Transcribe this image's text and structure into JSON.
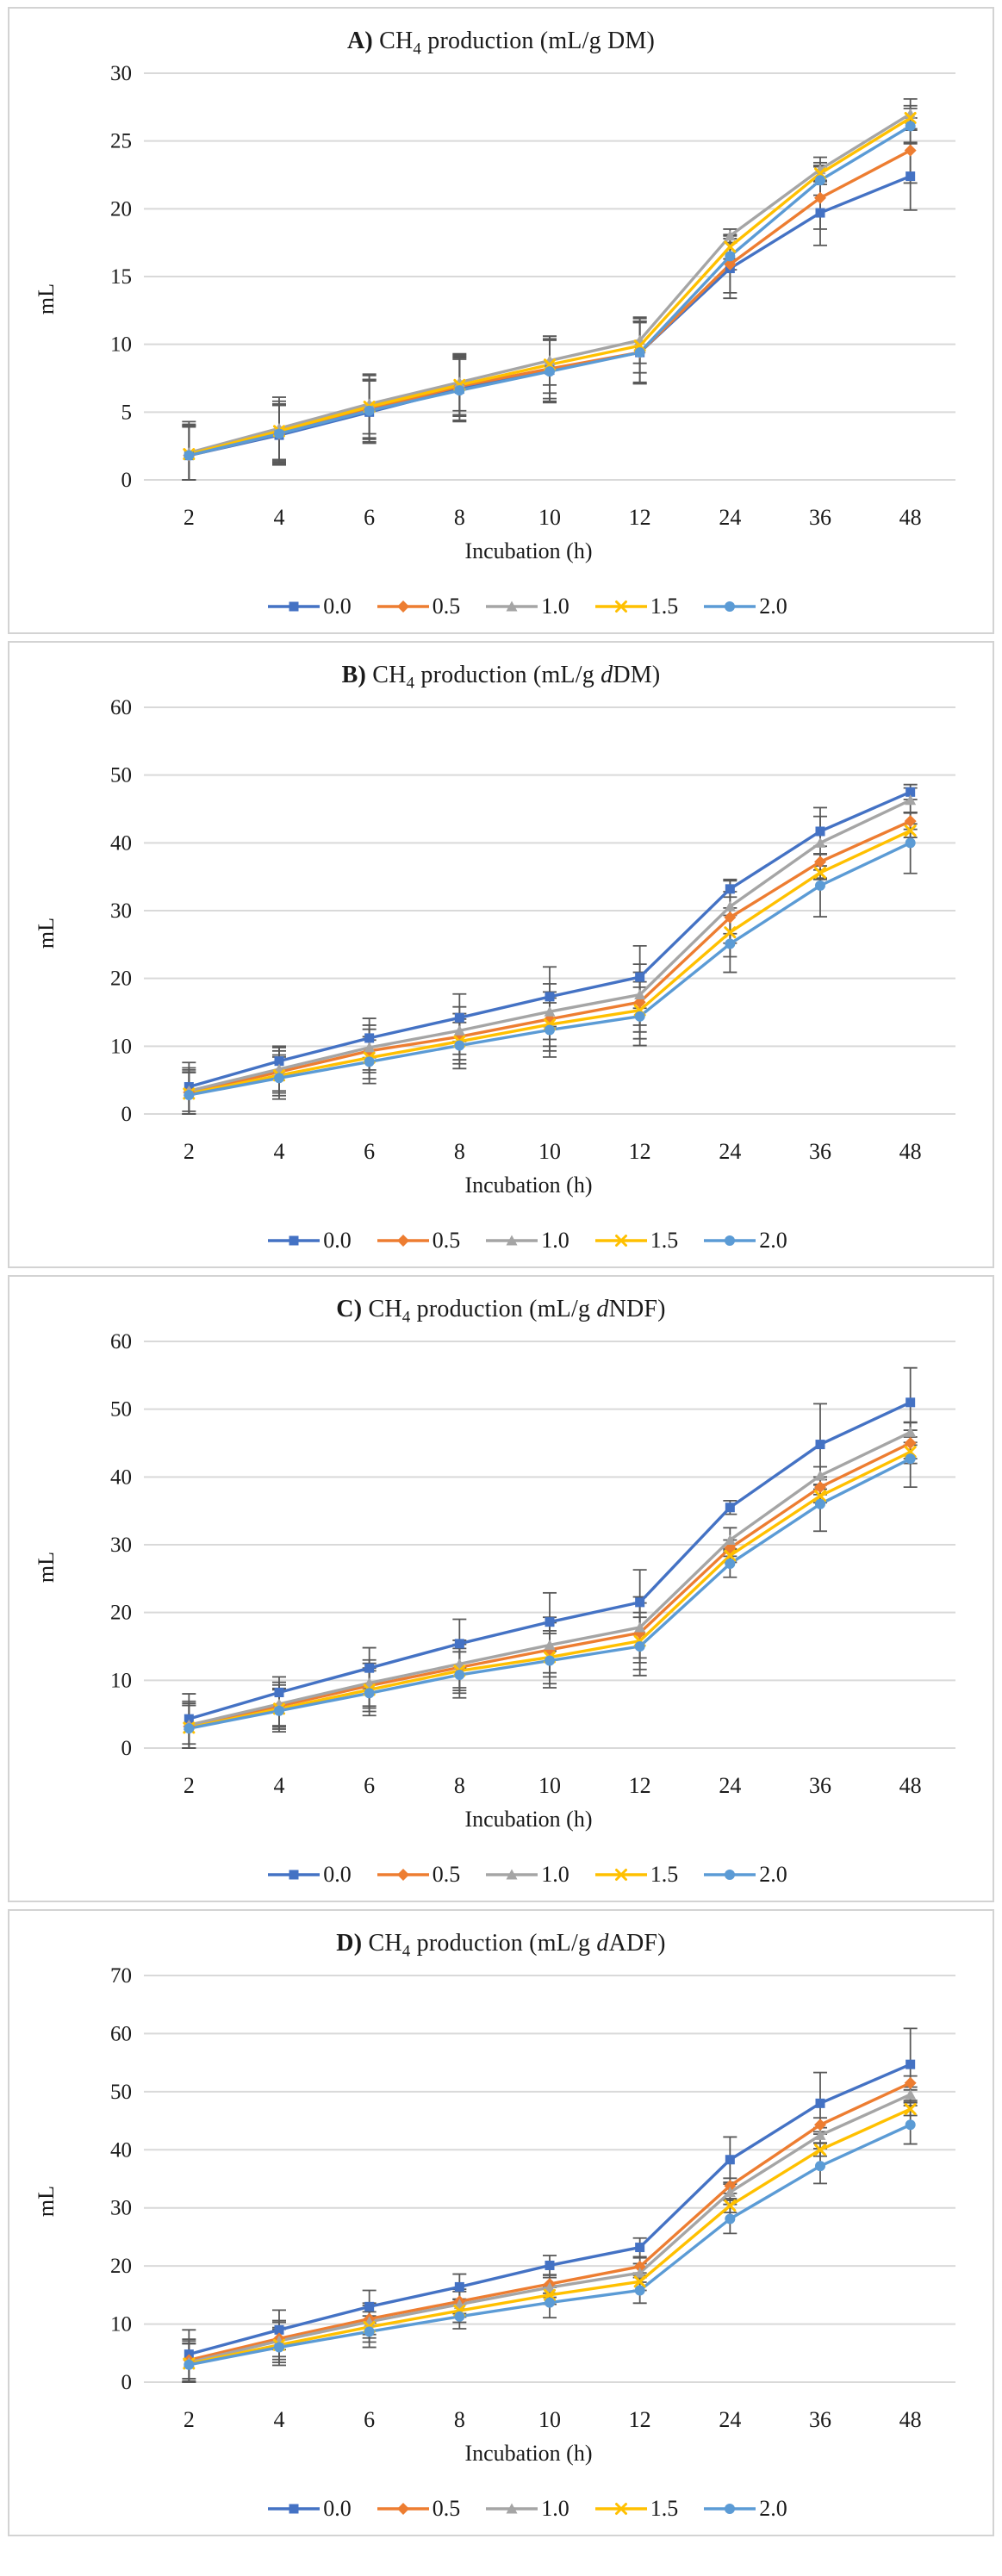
{
  "figure": {
    "xlabel": "Incubation (h)",
    "ylabel": "mL",
    "colors": {
      "grid": "#d9d9d9",
      "error_bar": "#595959",
      "panel_border": "#d3d3d3",
      "series_0.0": "#4472C4",
      "series_0.5": "#ED7D31",
      "series_1.0": "#A5A5A5",
      "series_1.5": "#FFC000",
      "series_2.0": "#5B9BD5"
    }
  },
  "chart_data": [
    {
      "type": "line",
      "panel": "A",
      "title_prefix": "A)",
      "title_formula": " CH",
      "title_sub": "4",
      "title_mid": " production (mL/g ",
      "title_italic": "",
      "title_unit": "DM)",
      "title_text": "A) CH4 production (mL/g DM)",
      "xlabel": "Incubation (h)",
      "ylabel": "mL",
      "ylim": [
        0,
        30
      ],
      "ystep": 5,
      "grid": true,
      "legend_position": "bottom",
      "categories": [
        2,
        4,
        6,
        8,
        10,
        12,
        24,
        36,
        48
      ],
      "series": [
        {
          "name": "0.0",
          "color": "#4472C4",
          "marker": "square",
          "values": [
            1.8,
            3.3,
            5.0,
            6.7,
            8.1,
            9.4,
            15.6,
            19.7,
            22.4
          ],
          "errors": [
            2.2,
            2.2,
            2.3,
            2.3,
            2.3,
            2.3,
            2.2,
            2.4,
            2.5
          ]
        },
        {
          "name": "0.5",
          "color": "#ED7D31",
          "marker": "diamond",
          "values": [
            1.8,
            3.4,
            5.2,
            6.9,
            8.2,
            9.4,
            15.9,
            20.8,
            24.3
          ],
          "errors": [
            2.1,
            2.1,
            2.2,
            2.2,
            2.2,
            2.2,
            2.1,
            2.3,
            2.4
          ]
        },
        {
          "name": "1.0",
          "color": "#A5A5A5",
          "marker": "triangle",
          "values": [
            2.0,
            3.8,
            5.6,
            7.2,
            8.8,
            10.3,
            18.0,
            22.9,
            27.0
          ],
          "errors": [
            2.3,
            2.3,
            2.2,
            2.1,
            1.8,
            1.7,
            0.5,
            0.9,
            1.1
          ]
        },
        {
          "name": "1.5",
          "color": "#FFC000",
          "marker": "x",
          "values": [
            1.9,
            3.6,
            5.4,
            7.0,
            8.5,
            9.9,
            17.2,
            22.6,
            26.7
          ],
          "errors": [
            2.2,
            2.2,
            2.3,
            2.2,
            2.1,
            2.0,
            0.9,
            0.8,
            0.9
          ]
        },
        {
          "name": "2.0",
          "color": "#5B9BD5",
          "marker": "circle",
          "values": [
            1.8,
            3.4,
            5.1,
            6.6,
            8.0,
            9.4,
            16.5,
            22.1,
            26.1
          ],
          "errors": [
            2.2,
            2.2,
            2.3,
            2.3,
            2.3,
            2.3,
            1.0,
            1.1,
            1.3
          ]
        }
      ]
    },
    {
      "type": "line",
      "panel": "B",
      "title_prefix": "B)",
      "title_formula": " CH",
      "title_sub": "4",
      "title_mid": " production (mL/g ",
      "title_italic": "d",
      "title_unit": "DM)",
      "title_text": "B) CH4 production (mL/g dDM)",
      "xlabel": "Incubation (h)",
      "ylabel": "mL",
      "ylim": [
        0,
        60
      ],
      "ystep": 10,
      "grid": true,
      "legend_position": "bottom",
      "categories": [
        2,
        4,
        6,
        8,
        10,
        12,
        24,
        36,
        48
      ],
      "series": [
        {
          "name": "0.0",
          "color": "#4472C4",
          "marker": "square",
          "values": [
            4.0,
            7.8,
            11.2,
            14.2,
            17.3,
            20.2,
            33.2,
            41.7,
            47.5
          ],
          "errors": [
            3.6,
            2.2,
            2.9,
            3.5,
            4.4,
            4.6,
            1.2,
            2.2,
            1.1
          ]
        },
        {
          "name": "0.5",
          "color": "#ED7D31",
          "marker": "diamond",
          "values": [
            3.2,
            6.2,
            9.3,
            11.4,
            14.0,
            16.5,
            29.0,
            37.2,
            43.2
          ],
          "errors": [
            3.3,
            3.1,
            3.2,
            3.4,
            4.0,
            4.4,
            3.8,
            1.2,
            1.2
          ]
        },
        {
          "name": "1.0",
          "color": "#A5A5A5",
          "marker": "triangle",
          "values": [
            3.4,
            6.6,
            9.8,
            12.3,
            15.1,
            17.6,
            30.6,
            40.0,
            46.3
          ],
          "errors": [
            3.4,
            3.2,
            3.3,
            3.5,
            4.1,
            4.5,
            4.0,
            5.2,
            1.8
          ]
        },
        {
          "name": "1.5",
          "color": "#FFC000",
          "marker": "x",
          "values": [
            3.0,
            5.7,
            8.3,
            10.7,
            13.2,
            15.3,
            26.8,
            35.6,
            41.8
          ],
          "errors": [
            3.2,
            3.0,
            3.1,
            3.3,
            3.9,
            4.2,
            3.6,
            1.0,
            1.0
          ]
        },
        {
          "name": "2.0",
          "color": "#5B9BD5",
          "marker": "circle",
          "values": [
            2.8,
            5.3,
            7.7,
            10.1,
            12.4,
            14.4,
            25.1,
            33.7,
            40.0
          ],
          "errors": [
            3.3,
            3.1,
            3.2,
            3.4,
            4.0,
            4.3,
            4.2,
            4.6,
            4.5
          ]
        }
      ]
    },
    {
      "type": "line",
      "panel": "C",
      "title_prefix": "C)",
      "title_formula": " CH",
      "title_sub": "4",
      "title_mid": " production (mL/g ",
      "title_italic": "d",
      "title_unit": "NDF)",
      "title_text": "C) CH4 production (mL/g dNDF)",
      "xlabel": "Incubation (h)",
      "ylabel": "mL",
      "ylim": [
        0,
        60
      ],
      "ystep": 10,
      "grid": true,
      "legend_position": "bottom",
      "categories": [
        2,
        4,
        6,
        8,
        10,
        12,
        24,
        36,
        48
      ],
      "series": [
        {
          "name": "0.0",
          "color": "#4472C4",
          "marker": "square",
          "values": [
            4.3,
            8.2,
            11.8,
            15.4,
            18.6,
            21.5,
            35.5,
            44.8,
            51.0
          ],
          "errors": [
            3.7,
            2.3,
            3.0,
            3.6,
            4.3,
            4.8,
            1.0,
            6.0,
            5.1
          ]
        },
        {
          "name": "0.5",
          "color": "#ED7D31",
          "marker": "diamond",
          "values": [
            3.2,
            6.2,
            9.2,
            11.9,
            14.5,
            17.0,
            29.5,
            38.5,
            45.0
          ],
          "errors": [
            3.4,
            3.1,
            3.3,
            3.4,
            4.0,
            4.4,
            1.2,
            1.1,
            3.0
          ]
        },
        {
          "name": "1.0",
          "color": "#A5A5A5",
          "marker": "triangle",
          "values": [
            3.4,
            6.5,
            9.6,
            12.4,
            15.2,
            17.8,
            30.7,
            40.2,
            46.6
          ],
          "errors": [
            3.5,
            3.2,
            3.4,
            3.5,
            4.1,
            4.5,
            1.8,
            1.3,
            1.5
          ]
        },
        {
          "name": "1.5",
          "color": "#FFC000",
          "marker": "x",
          "values": [
            3.0,
            5.8,
            8.6,
            11.4,
            13.4,
            15.8,
            28.4,
            37.2,
            43.7
          ],
          "errors": [
            3.3,
            3.0,
            3.2,
            3.3,
            3.9,
            4.2,
            1.0,
            1.0,
            1.0
          ]
        },
        {
          "name": "2.0",
          "color": "#5B9BD5",
          "marker": "circle",
          "values": [
            2.9,
            5.5,
            8.1,
            10.8,
            12.9,
            15.0,
            27.2,
            36.0,
            42.7
          ],
          "errors": [
            3.4,
            3.1,
            3.3,
            3.4,
            4.0,
            4.3,
            2.0,
            4.0,
            4.2
          ]
        }
      ]
    },
    {
      "type": "line",
      "panel": "D",
      "title_prefix": "D)",
      "title_formula": " CH",
      "title_sub": "4",
      "title_mid": " production (mL/g ",
      "title_italic": "d",
      "title_unit": "ADF)",
      "title_text": "D) CH4 production (mL/g dADF)",
      "xlabel": "Incubation (h)",
      "ylabel": "mL",
      "ylim": [
        0,
        70
      ],
      "ystep": 10,
      "grid": true,
      "legend_position": "bottom",
      "categories": [
        2,
        4,
        6,
        8,
        10,
        12,
        24,
        36,
        48
      ],
      "series": [
        {
          "name": "0.0",
          "color": "#4472C4",
          "marker": "square",
          "values": [
            4.8,
            9.0,
            13.0,
            16.4,
            20.1,
            23.2,
            38.3,
            48.0,
            54.7
          ],
          "errors": [
            4.2,
            3.4,
            2.8,
            2.2,
            1.7,
            1.6,
            3.9,
            5.3,
            6.2
          ]
        },
        {
          "name": "0.5",
          "color": "#ED7D31",
          "marker": "diamond",
          "values": [
            3.8,
            7.5,
            10.9,
            13.9,
            16.9,
            19.9,
            33.8,
            44.3,
            51.5
          ],
          "errors": [
            3.6,
            3.1,
            2.7,
            2.1,
            1.6,
            1.5,
            1.3,
            1.2,
            1.2
          ]
        },
        {
          "name": "1.0",
          "color": "#A5A5A5",
          "marker": "triangle",
          "values": [
            3.4,
            7.1,
            10.4,
            13.4,
            16.3,
            18.8,
            32.7,
            42.5,
            49.5
          ],
          "errors": [
            3.7,
            3.2,
            2.8,
            2.2,
            1.7,
            1.6,
            1.4,
            1.3,
            1.3
          ]
        },
        {
          "name": "1.5",
          "color": "#FFC000",
          "marker": "x",
          "values": [
            3.2,
            6.4,
            9.5,
            12.3,
            15.0,
            17.3,
            30.4,
            40.0,
            47.0
          ],
          "errors": [
            3.5,
            3.0,
            2.6,
            2.0,
            1.6,
            1.5,
            1.2,
            1.1,
            1.1
          ]
        },
        {
          "name": "2.0",
          "color": "#5B9BD5",
          "marker": "circle",
          "values": [
            3.0,
            6.0,
            8.7,
            11.3,
            13.7,
            15.8,
            28.1,
            37.2,
            44.3
          ],
          "errors": [
            3.6,
            3.1,
            2.7,
            2.1,
            2.6,
            2.2,
            2.5,
            3.0,
            3.3
          ]
        }
      ]
    }
  ]
}
